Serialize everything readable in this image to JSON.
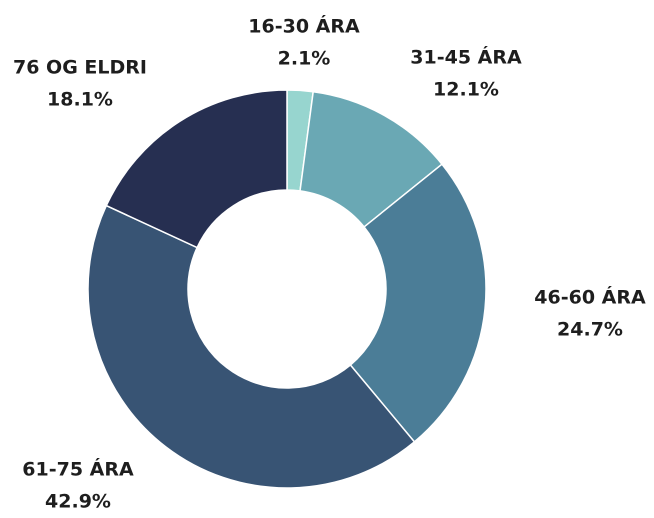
{
  "chart_data": {
    "type": "donut",
    "categories": [
      "16-30 ÁRA",
      "31-45 ÁRA",
      "46-60 ÁRA",
      "61-75 ÁRA",
      "76 OG ELDRI"
    ],
    "values": [
      2.1,
      12.1,
      24.7,
      42.9,
      18.1
    ],
    "value_labels": [
      "2.1%",
      "12.1%",
      "24.7%",
      "42.9%",
      "18.1%"
    ],
    "colors": [
      "#97d5cf",
      "#6aa8b4",
      "#4b7d97",
      "#385474",
      "#262f51"
    ]
  }
}
